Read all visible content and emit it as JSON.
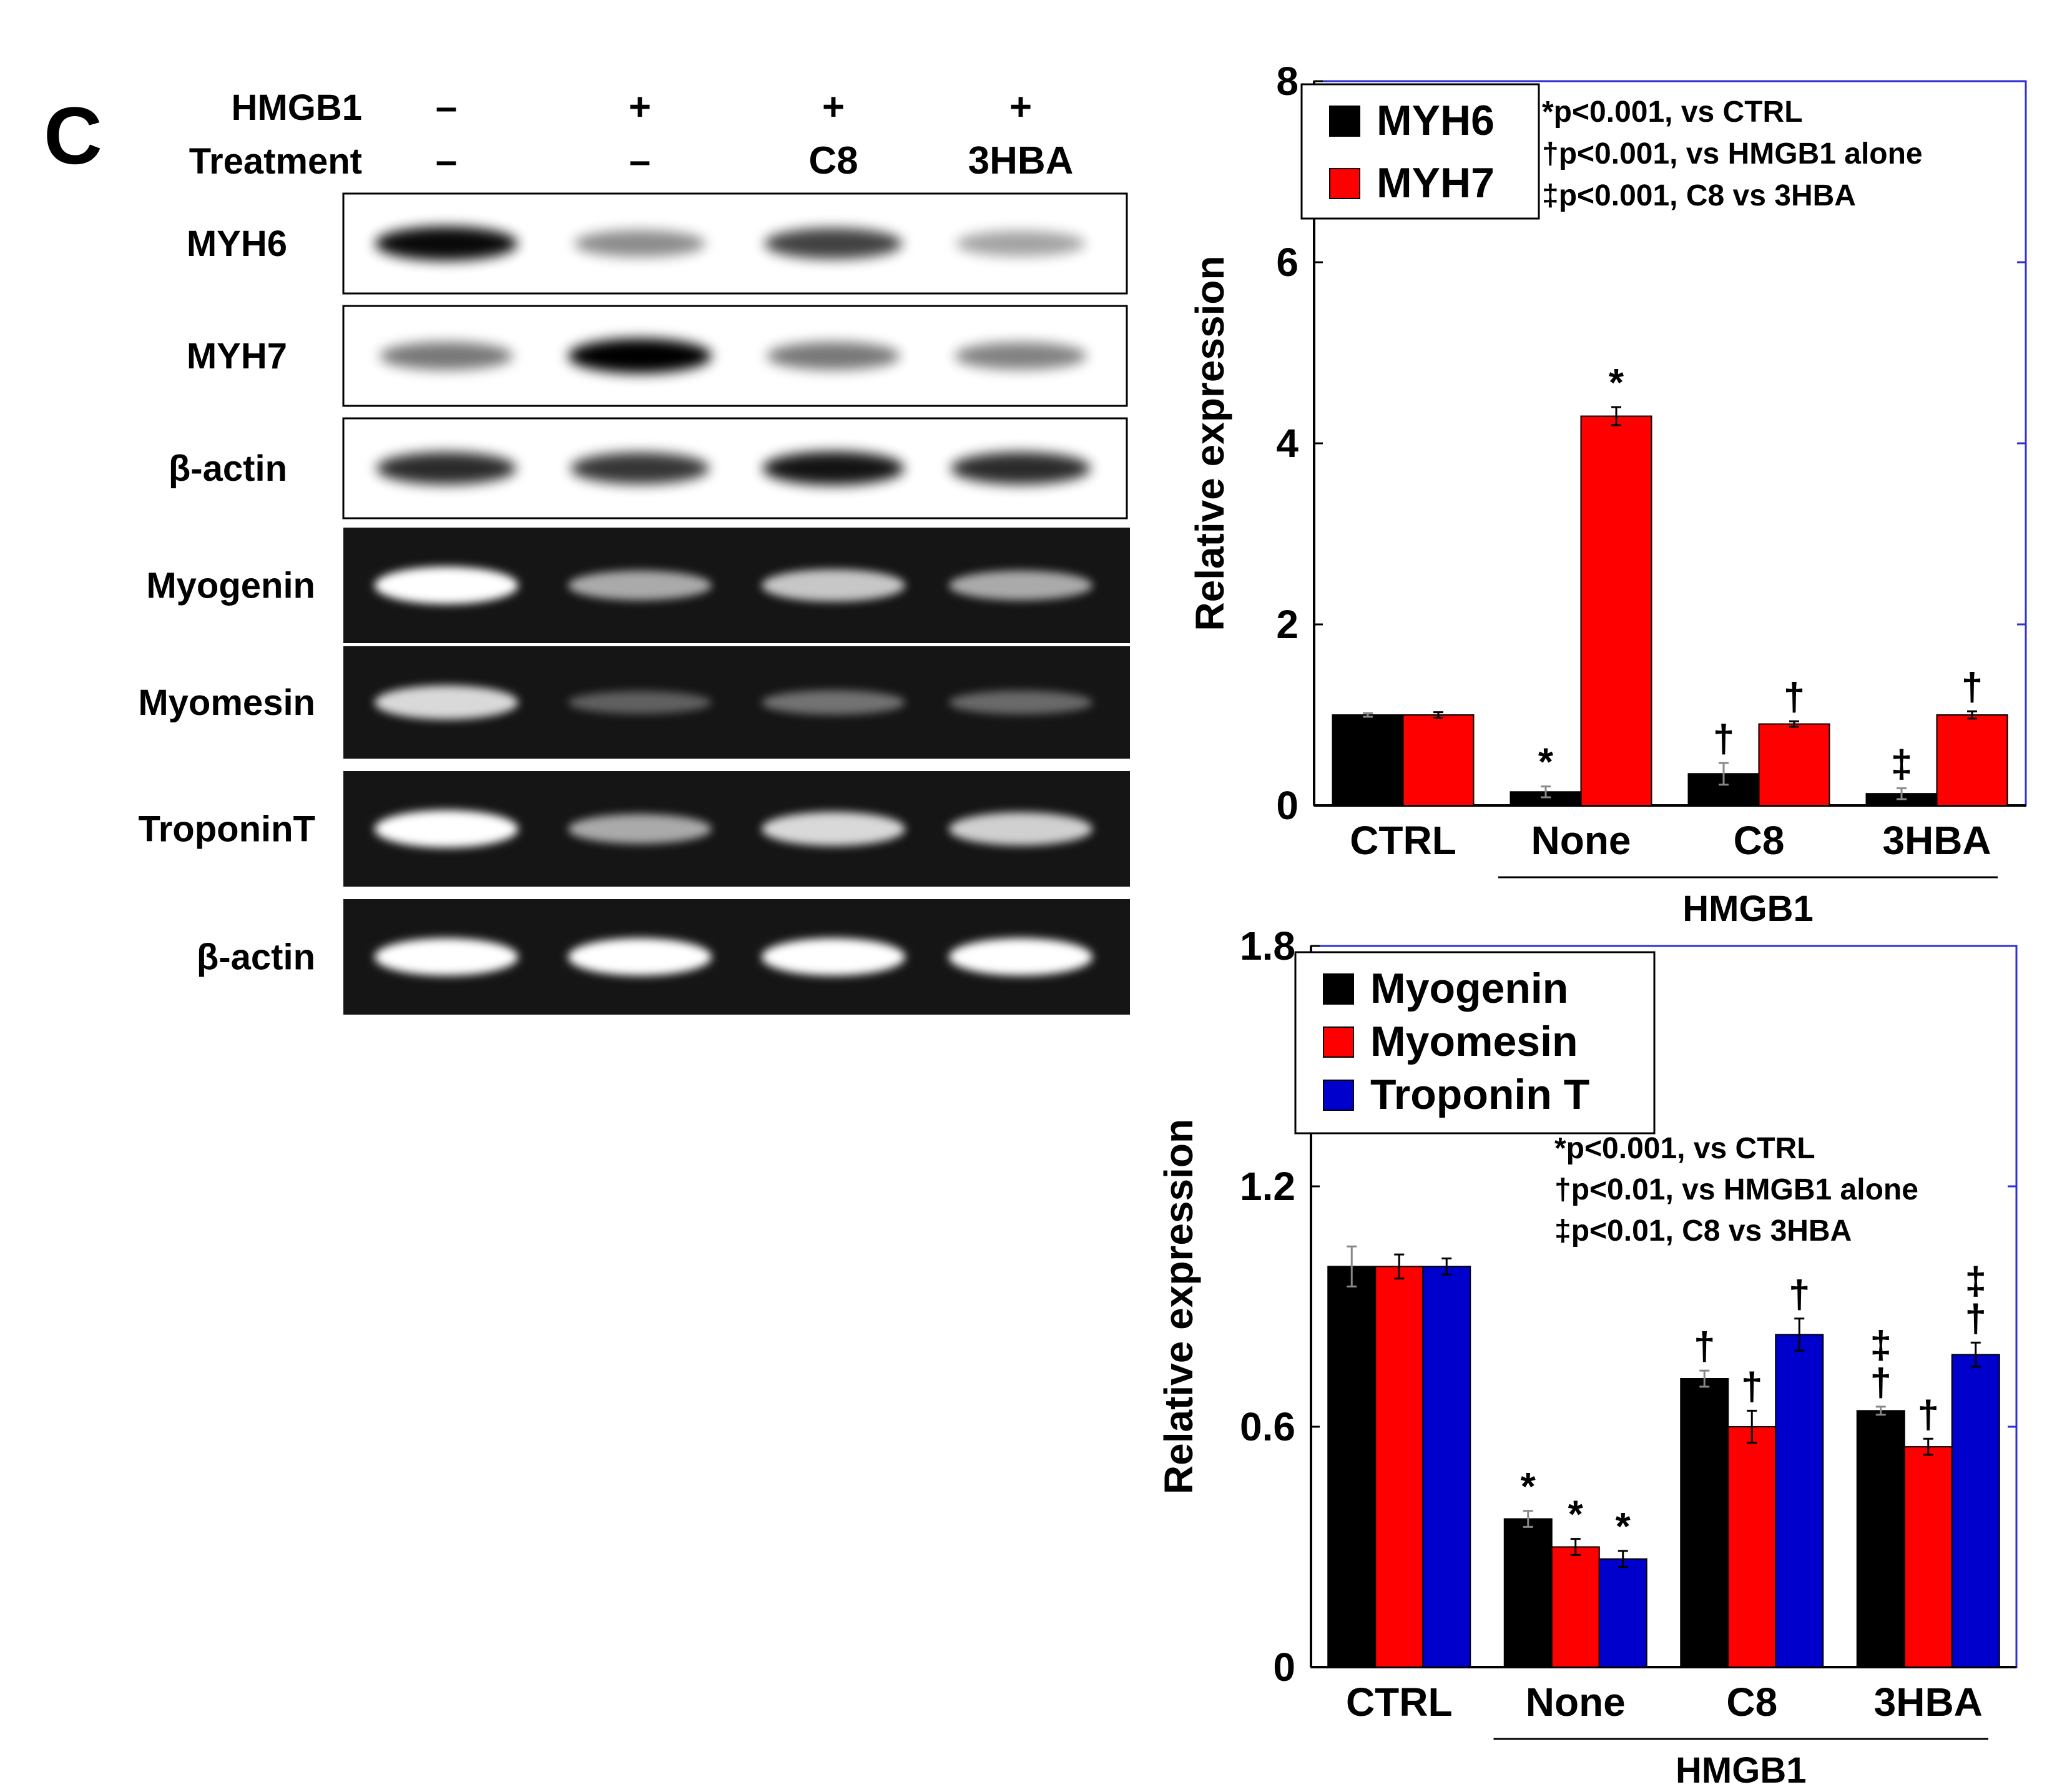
{
  "panel_label": "C",
  "blot": {
    "conditions": [
      {
        "label": "HMGB1",
        "values": [
          "–",
          "+",
          "+",
          "+"
        ]
      },
      {
        "label": "Treatment",
        "values": [
          "–",
          "–",
          "C8",
          "3HBA"
        ]
      }
    ],
    "western_rows": [
      {
        "label": "MYH6",
        "bands": [
          0.95,
          0.35,
          0.7,
          0.25
        ]
      },
      {
        "label": "MYH7",
        "bands": [
          0.45,
          1.0,
          0.45,
          0.4
        ]
      },
      {
        "label": "β-actin",
        "bands": [
          0.8,
          0.75,
          0.9,
          0.8
        ]
      }
    ],
    "gel_rows": [
      {
        "label": "Myogenin",
        "bands": [
          1.0,
          0.55,
          0.7,
          0.55
        ]
      },
      {
        "label": "Myomesin",
        "bands": [
          0.8,
          0.15,
          0.25,
          0.2
        ]
      },
      {
        "label": "TroponinT",
        "bands": [
          1.0,
          0.55,
          0.8,
          0.75
        ]
      },
      {
        "label": "β-actin",
        "bands": [
          1.0,
          1.0,
          1.0,
          1.0
        ]
      }
    ]
  },
  "chart_data": [
    {
      "type": "bar",
      "categories": [
        "CTRL",
        "None",
        "C8",
        "3HBA"
      ],
      "group_label": "HMGB1",
      "ylabel": "Relative expression",
      "ylim": [
        0,
        8
      ],
      "yticks": [
        "0",
        "2",
        "4",
        "6",
        "8"
      ],
      "series": [
        {
          "name": "MYH6",
          "color": "#000000",
          "values": [
            1.0,
            0.15,
            0.35,
            0.13
          ],
          "errors": [
            0.02,
            0.06,
            0.12,
            0.06
          ],
          "marks": [
            "",
            "*",
            "†",
            "‡"
          ]
        },
        {
          "name": "MYH7",
          "color": "#ff0000",
          "values": [
            1.0,
            4.3,
            0.9,
            1.0
          ],
          "errors": [
            0.03,
            0.1,
            0.03,
            0.04
          ],
          "marks": [
            "",
            "*",
            "†",
            "†"
          ]
        }
      ],
      "annotations": [
        "*p<0.001, vs CTRL",
        "†p<0.001, vs HMGB1 alone",
        "‡p<0.001, C8 vs 3HBA"
      ]
    },
    {
      "type": "bar",
      "categories": [
        "CTRL",
        "None",
        "C8",
        "3HBA"
      ],
      "group_label": "HMGB1",
      "ylabel": "Relative expression",
      "ylim": [
        0,
        1.8
      ],
      "yticks": [
        "0",
        "0.6",
        "1.2",
        "1.8"
      ],
      "series": [
        {
          "name": "Myogenin",
          "color": "#000000",
          "values": [
            1.0,
            0.37,
            0.72,
            0.64
          ],
          "errors": [
            0.05,
            0.02,
            0.02,
            0.01
          ],
          "marks": [
            "",
            "*",
            "†",
            "‡\n†"
          ]
        },
        {
          "name": "Myomesin",
          "color": "#ff0000",
          "values": [
            1.0,
            0.3,
            0.6,
            0.55
          ],
          "errors": [
            0.03,
            0.02,
            0.04,
            0.02
          ],
          "marks": [
            "",
            "*",
            "†",
            "†"
          ]
        },
        {
          "name": "Troponin T",
          "color": "#0000cc",
          "values": [
            1.0,
            0.27,
            0.83,
            0.78
          ],
          "errors": [
            0.02,
            0.02,
            0.04,
            0.03
          ],
          "marks": [
            "",
            "*",
            "†",
            "‡\n†"
          ]
        }
      ],
      "annotations": [
        "*p<0.001, vs CTRL",
        "†p<0.01, vs HMGB1 alone",
        "‡p<0.01, C8 vs 3HBA"
      ]
    }
  ]
}
